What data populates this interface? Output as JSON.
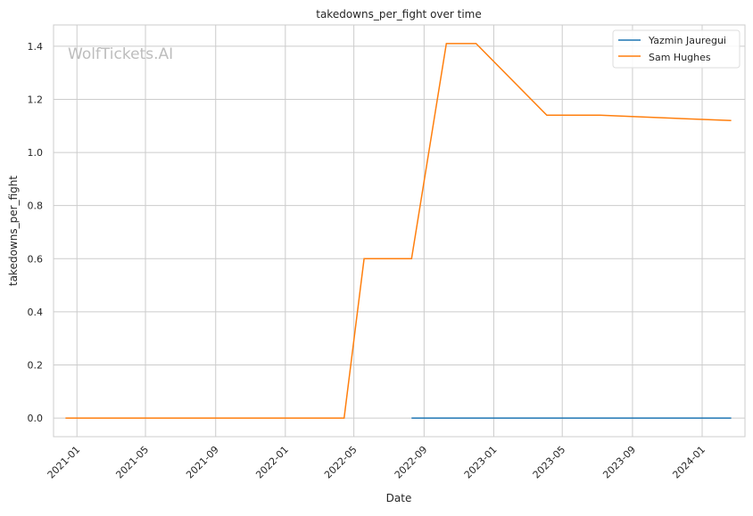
{
  "chart_data": {
    "type": "line",
    "title": "takedowns_per_fight over time",
    "xlabel": "Date",
    "ylabel": "takedowns_per_fight",
    "watermark": "WolfTickets.AI",
    "xlim": [
      "2020-11-21",
      "2024-03-16"
    ],
    "ylim": [
      -0.07,
      1.48
    ],
    "x_ticks": [
      "2021-01",
      "2021-05",
      "2021-09",
      "2022-01",
      "2022-05",
      "2022-09",
      "2023-01",
      "2023-05",
      "2023-09",
      "2024-01"
    ],
    "y_ticks": [
      "0.0",
      "0.2",
      "0.4",
      "0.6",
      "0.8",
      "1.0",
      "1.2",
      "1.4"
    ],
    "grid": true,
    "legend_position": "top-right",
    "series": [
      {
        "name": "Yazmin Jauregui",
        "color": "#1f77b4",
        "x": [
          "2022-08-10",
          "2024-02-21"
        ],
        "y": [
          0,
          0
        ]
      },
      {
        "name": "Sam Hughes",
        "color": "#ff7f0e",
        "x": [
          "2020-12-12",
          "2022-04-14",
          "2022-05-19",
          "2022-08-10",
          "2022-10-10",
          "2022-12-01",
          "2023-04-04",
          "2023-07-06",
          "2024-02-21"
        ],
        "y": [
          0,
          0,
          0.6,
          0.6,
          1.41,
          1.41,
          1.14,
          1.14,
          1.12
        ]
      }
    ]
  }
}
